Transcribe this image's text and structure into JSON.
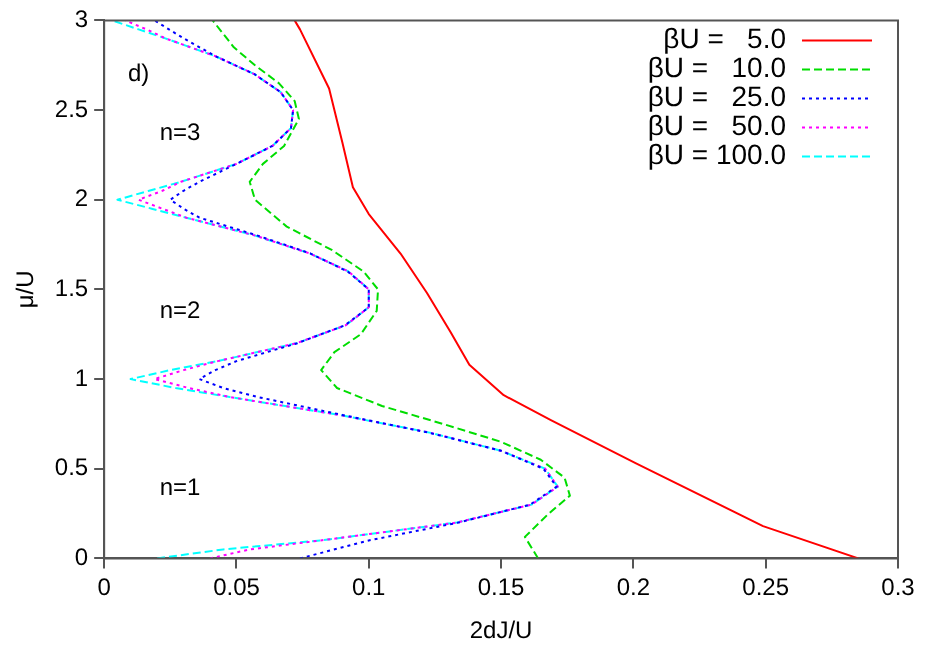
{
  "chart_data": {
    "type": "line",
    "xlabel": "2dJ/U",
    "ylabel": "μ/U",
    "xlim": [
      0,
      0.3
    ],
    "ylim": [
      0,
      3
    ],
    "xticks": [
      0,
      0.05,
      0.1,
      0.15,
      0.2,
      0.25,
      0.3
    ],
    "yticks": [
      0,
      0.5,
      1,
      1.5,
      2,
      2.5,
      3
    ],
    "grid": false,
    "legend": "top right",
    "marker": "none",
    "annotations": [
      "d)",
      "n=3",
      "n=2",
      "n=1"
    ],
    "series": [
      {
        "name": "βU =   5.0",
        "color": "#ff0000",
        "line_style": "solid",
        "x": [
          0.285,
          0.249,
          0.201,
          0.169,
          0.151,
          0.138,
          0.131,
          0.122,
          0.112,
          0.1,
          0.094,
          0.09,
          0.085,
          0.074,
          0.072
        ],
        "values": [
          0,
          0.18,
          0.53,
          0.77,
          0.91,
          1.08,
          1.26,
          1.48,
          1.7,
          1.92,
          2.07,
          2.32,
          2.62,
          2.95,
          3
        ]
      },
      {
        "name": "βU =   10.0",
        "color": "#00dd00",
        "line_style": "dashed",
        "x": [
          0.164,
          0.159,
          0.168,
          0.176,
          0.174,
          0.165,
          0.15,
          0.128,
          0.105,
          0.088,
          0.082,
          0.087,
          0.097,
          0.103,
          0.1035,
          0.098,
          0.086,
          0.069,
          0.057,
          0.055,
          0.06,
          0.068,
          0.0736,
          0.072,
          0.066,
          0.057,
          0.049,
          0.041
        ],
        "values": [
          0,
          0.12,
          0.25,
          0.35,
          0.45,
          0.55,
          0.65,
          0.75,
          0.85,
          0.95,
          1.05,
          1.15,
          1.25,
          1.38,
          1.5,
          1.6,
          1.72,
          1.85,
          2,
          2.1,
          2.2,
          2.3,
          2.45,
          2.55,
          2.65,
          2.75,
          2.85,
          3
        ]
      },
      {
        "name": "βU =   25.0",
        "color": "#0000ff",
        "line_style": "dotted",
        "x": [
          0.074,
          0.1,
          0.134,
          0.161,
          0.171,
          0.166,
          0.15,
          0.123,
          0.09,
          0.058,
          0.045,
          0.036,
          0.042,
          0.05,
          0.073,
          0.091,
          0.1,
          0.1,
          0.092,
          0.078,
          0.058,
          0.036,
          0.03,
          0.025,
          0.03,
          0.036,
          0.05,
          0.0636,
          0.0706,
          0.0714,
          0.0667,
          0.0568,
          0.0421,
          0.03,
          0.019
        ],
        "values": [
          0,
          0.1,
          0.2,
          0.3,
          0.4,
          0.5,
          0.6,
          0.7,
          0.8,
          0.9,
          0.95,
          1,
          1.05,
          1.1,
          1.2,
          1.3,
          1.4,
          1.5,
          1.6,
          1.7,
          1.8,
          1.9,
          1.95,
          2,
          2.05,
          2.1,
          2.2,
          2.3,
          2.4,
          2.5,
          2.6,
          2.7,
          2.8,
          2.9,
          3
        ]
      },
      {
        "name": "βU =   50.0",
        "color": "#ff00ff",
        "line_style": "dotted",
        "x": [
          0.04,
          0.055,
          0.0818,
          0.1333,
          0.1615,
          0.1714,
          0.1667,
          0.15,
          0.1235,
          0.0889,
          0.0474,
          0.032,
          0.019,
          0.03,
          0.0429,
          0.0727,
          0.0913,
          0.1,
          0.1,
          0.0923,
          0.0778,
          0.0571,
          0.031,
          0.022,
          0.013,
          0.022,
          0.029,
          0.05,
          0.0636,
          0.0706,
          0.0714,
          0.0667,
          0.0568,
          0.0421,
          0.0231,
          0.016,
          0.008
        ],
        "values": [
          0,
          0.05,
          0.1,
          0.2,
          0.3,
          0.4,
          0.5,
          0.6,
          0.7,
          0.8,
          0.9,
          0.95,
          1,
          1.05,
          1.1,
          1.2,
          1.3,
          1.4,
          1.5,
          1.6,
          1.7,
          1.8,
          1.9,
          1.95,
          2,
          2.05,
          2.1,
          2.2,
          2.3,
          2.4,
          2.5,
          2.6,
          2.7,
          2.8,
          2.9,
          2.95,
          3
        ]
      },
      {
        "name": "βU = 100.0",
        "color": "#00ffff",
        "line_style": "dashed",
        "x": [
          0.02,
          0.045,
          0.0818,
          0.1333,
          0.1615,
          0.1714,
          0.1667,
          0.15,
          0.1235,
          0.0889,
          0.0474,
          0.027,
          0.01,
          0.025,
          0.0429,
          0.0727,
          0.0913,
          0.1,
          0.1,
          0.0923,
          0.0778,
          0.0571,
          0.031,
          0.018,
          0.005,
          0.017,
          0.029,
          0.05,
          0.0636,
          0.0706,
          0.0714,
          0.0667,
          0.0568,
          0.0421,
          0.0231,
          0.013,
          0.003
        ],
        "values": [
          0,
          0.05,
          0.1,
          0.2,
          0.3,
          0.4,
          0.5,
          0.6,
          0.7,
          0.8,
          0.9,
          0.95,
          1,
          1.05,
          1.1,
          1.2,
          1.3,
          1.4,
          1.5,
          1.6,
          1.7,
          1.8,
          1.9,
          1.95,
          2,
          2.05,
          2.1,
          2.2,
          2.3,
          2.4,
          2.5,
          2.6,
          2.7,
          2.8,
          2.9,
          2.95,
          3
        ]
      }
    ]
  }
}
